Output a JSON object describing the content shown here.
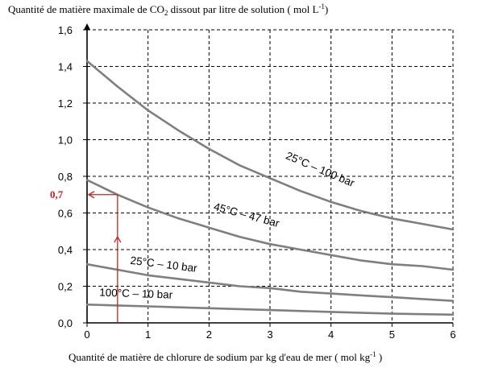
{
  "chart_data": {
    "type": "line",
    "title": "Quantité de matière maximale de CO",
    "title_sub": "2",
    "title_rest": " dissout par litre de solution ( mol L",
    "title_sup": "-1",
    "title_end": ")",
    "xlabel": "Quantité de matière de chlorure de sodium par kg d'eau de mer ( mol kg",
    "xlabel_sup": "-1",
    "xlabel_end": " )",
    "xlim": [
      0,
      6
    ],
    "ylim": [
      0,
      1.6
    ],
    "x_ticks": [
      "0",
      "1",
      "2",
      "3",
      "4",
      "5",
      "6"
    ],
    "y_ticks": [
      "0,0",
      "0,2",
      "0,4",
      "0,6",
      "0,8",
      "1,0",
      "1,2",
      "1,4",
      "1,6"
    ],
    "grid": true,
    "series": [
      {
        "name": "25°C – 100 bar",
        "x": [
          0,
          0.5,
          1,
          1.5,
          2,
          2.5,
          3,
          3.5,
          4,
          4.5,
          5,
          5.5,
          6
        ],
        "y": [
          1.43,
          1.29,
          1.16,
          1.05,
          0.95,
          0.86,
          0.79,
          0.72,
          0.66,
          0.61,
          0.57,
          0.54,
          0.51
        ]
      },
      {
        "name": "45°C – 47 bar",
        "x": [
          0,
          0.5,
          1,
          1.5,
          2,
          2.5,
          3,
          3.5,
          4,
          4.5,
          5,
          5.5,
          6
        ],
        "y": [
          0.78,
          0.7,
          0.63,
          0.57,
          0.52,
          0.47,
          0.43,
          0.4,
          0.37,
          0.34,
          0.32,
          0.31,
          0.29
        ]
      },
      {
        "name": "25°C – 10 bar",
        "x": [
          0,
          0.5,
          1,
          1.5,
          2,
          2.5,
          3,
          3.5,
          4,
          4.5,
          5,
          5.5,
          6
        ],
        "y": [
          0.32,
          0.29,
          0.26,
          0.24,
          0.22,
          0.2,
          0.19,
          0.17,
          0.16,
          0.15,
          0.14,
          0.13,
          0.12
        ]
      },
      {
        "name": "100°C – 10 bar",
        "x": [
          0,
          0.5,
          1,
          1.5,
          2,
          3,
          4,
          5,
          6
        ],
        "y": [
          0.1,
          0.095,
          0.09,
          0.085,
          0.08,
          0.07,
          0.06,
          0.05,
          0.045
        ]
      }
    ],
    "annotations": [
      {
        "text": "0,7",
        "y": 0.7,
        "from_x": 0.5,
        "color": "#cc2222"
      }
    ]
  }
}
